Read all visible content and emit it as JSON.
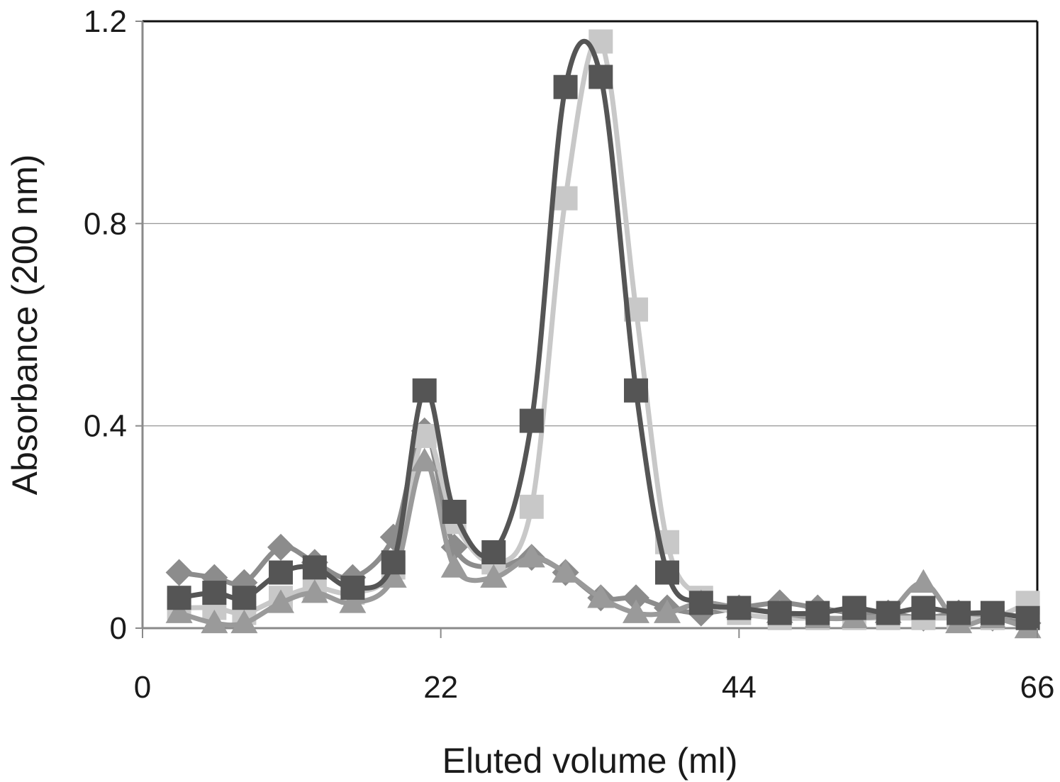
{
  "chart_data": {
    "type": "line",
    "title": "",
    "xlabel": "Eluted volume (ml)",
    "ylabel": "Absorbance (200 nm)",
    "xlim": [
      0,
      66
    ],
    "ylim": [
      0,
      1.2
    ],
    "x_ticks": [
      "0",
      "22",
      "44",
      "66"
    ],
    "y_ticks": [
      "0",
      "0.4",
      "0.8",
      "1.2"
    ],
    "grid": "horizontal",
    "legend": "none",
    "series": [
      {
        "marker": "diamond",
        "color": "#8c8c8c",
        "x": [
          2.7,
          5.3,
          7.5,
          10.2,
          12.7,
          15.5,
          18.5,
          20.8,
          23.0,
          25.9,
          28.7,
          31.2,
          33.8,
          36.4,
          38.7,
          41.2,
          44.0,
          47.0,
          49.8,
          52.5,
          55.0,
          57.6,
          60.2,
          62.7,
          65.3
        ],
        "y": [
          0.11,
          0.1,
          0.09,
          0.16,
          0.13,
          0.1,
          0.18,
          0.39,
          0.16,
          0.12,
          0.14,
          0.11,
          0.06,
          0.06,
          0.04,
          0.03,
          0.04,
          0.05,
          0.04,
          0.03,
          0.03,
          0.02,
          0.03,
          0.02,
          0.01
        ]
      },
      {
        "marker": "square",
        "color": "#c8c8c8",
        "x": [
          2.7,
          5.3,
          7.5,
          10.2,
          12.7,
          15.5,
          18.5,
          20.8,
          23.0,
          25.9,
          28.7,
          31.2,
          33.8,
          36.4,
          38.7,
          41.2,
          44.0,
          47.0,
          49.8,
          52.5,
          55.0,
          57.6,
          60.2,
          62.7,
          65.3
        ],
        "y": [
          0.04,
          0.04,
          0.03,
          0.06,
          0.08,
          0.07,
          0.12,
          0.38,
          0.21,
          0.13,
          0.24,
          0.85,
          1.16,
          0.63,
          0.17,
          0.06,
          0.03,
          0.02,
          0.02,
          0.02,
          0.02,
          0.02,
          0.02,
          0.02,
          0.05
        ]
      },
      {
        "marker": "triangle",
        "color": "#9a9a9a",
        "x": [
          2.7,
          5.3,
          7.5,
          10.2,
          12.7,
          15.5,
          18.5,
          20.8,
          23.0,
          25.9,
          28.7,
          31.2,
          33.8,
          36.4,
          38.7,
          41.2,
          44.0,
          47.0,
          49.8,
          52.5,
          55.0,
          57.6,
          60.2,
          62.7,
          65.3
        ],
        "y": [
          0.03,
          0.01,
          0.01,
          0.05,
          0.07,
          0.05,
          0.1,
          0.33,
          0.12,
          0.1,
          0.14,
          0.11,
          0.06,
          0.03,
          0.03,
          0.05,
          0.04,
          0.03,
          0.02,
          0.02,
          0.03,
          0.09,
          0.01,
          0.02,
          0.0
        ]
      },
      {
        "marker": "square",
        "color": "#555555",
        "x": [
          2.7,
          5.3,
          7.5,
          10.2,
          12.7,
          15.5,
          18.5,
          20.8,
          23.0,
          25.9,
          28.7,
          31.2,
          33.8,
          36.4,
          38.7,
          41.2,
          44.0,
          47.0,
          49.8,
          52.5,
          55.0,
          57.6,
          60.2,
          62.7,
          65.3
        ],
        "y": [
          0.06,
          0.07,
          0.06,
          0.11,
          0.12,
          0.08,
          0.13,
          0.47,
          0.23,
          0.15,
          0.41,
          1.07,
          1.09,
          0.47,
          0.11,
          0.05,
          0.04,
          0.03,
          0.03,
          0.04,
          0.03,
          0.04,
          0.03,
          0.03,
          0.02
        ]
      }
    ]
  }
}
